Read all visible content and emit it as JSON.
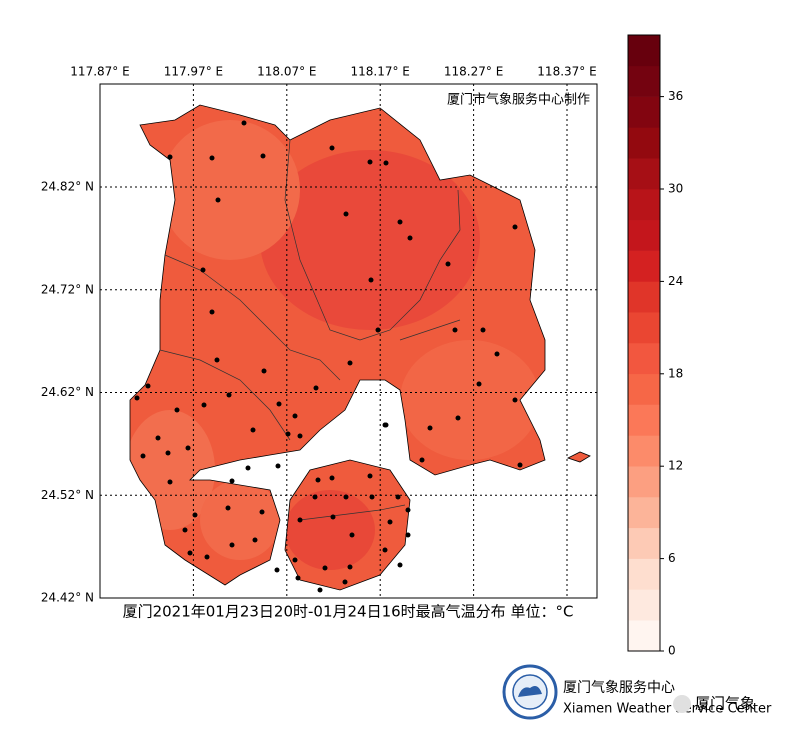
{
  "map": {
    "credit": "厦门市气象服务中心制作",
    "caption": "厦门2021年01月23日20时-01月24日16时最高气温分布 单位：°C",
    "lon_ticks": [
      {
        "value": 117.87,
        "label": "117.87° E"
      },
      {
        "value": 117.97,
        "label": "117.97° E"
      },
      {
        "value": 118.07,
        "label": "118.07° E"
      },
      {
        "value": 118.17,
        "label": "118.17° E"
      },
      {
        "value": 118.27,
        "label": "118.27° E"
      },
      {
        "value": 118.37,
        "label": "118.37° E"
      }
    ],
    "lat_ticks": [
      {
        "value": 24.42,
        "label": "24.42° N"
      },
      {
        "value": 24.52,
        "label": "24.52° N"
      },
      {
        "value": 24.62,
        "label": "24.62° N"
      },
      {
        "value": 24.72,
        "label": "24.72° N"
      },
      {
        "value": 24.82,
        "label": "24.82° N"
      }
    ],
    "colorbar": {
      "lim": [
        0,
        40
      ],
      "ticks": [
        0,
        6,
        12,
        18,
        24,
        30,
        36
      ],
      "colors": [
        "#fff5f0",
        "#fee9df",
        "#fedecf",
        "#fdcab5",
        "#fcb499",
        "#fc9f81",
        "#fc8b6a",
        "#fb7858",
        "#f66747",
        "#f2573f",
        "#ea4632",
        "#e03529",
        "#d42121",
        "#c4161c",
        "#b81419",
        "#a60f15",
        "#93090f",
        "#820510",
        "#740310",
        "#67000d"
      ]
    }
  },
  "logo": {
    "name": "厦门气象服务中心",
    "name_en": "Xiamen Weather Service Center",
    "watermark": "厦门气象"
  }
}
